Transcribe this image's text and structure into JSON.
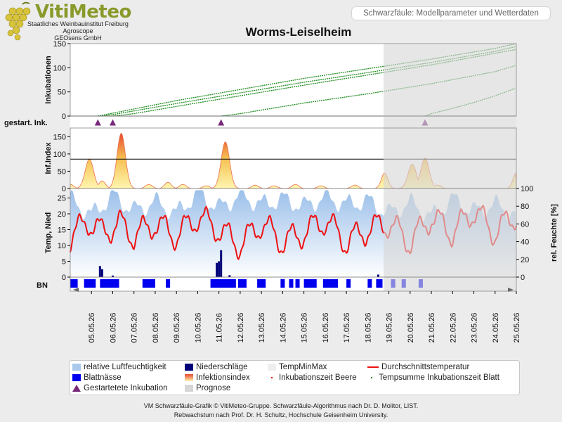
{
  "header": {
    "logo_name": "VitiMeteo",
    "logo_lines": [
      "Staatliches Weinbauinstitut Freiburg",
      "Agroscope",
      "GEOsens GmbH"
    ],
    "subtitle": "Schwarzfäule: Modellparameter und Wetterdaten",
    "title": "Worms-Leiselheim"
  },
  "colors": {
    "humidity": "#a8c8ec",
    "rain": "#00007a",
    "leafwet": "#0000ee",
    "temp": "#ee1111",
    "incubation": "#1e8c1e",
    "forecast": "#d6d6d6",
    "infection": "#f6d860",
    "marker": "#7a2a7a"
  },
  "chart_data": [
    {
      "type": "line",
      "panel": "Inkubationen",
      "ylabel": "Inkubationen",
      "ylim": [
        0,
        150
      ],
      "yticks": [
        0,
        50,
        100,
        150
      ],
      "x_axis": "date",
      "series": [
        {
          "x": [
            5.3,
            6.0,
            9.0,
            12.0,
            15.0,
            18.0,
            21.0,
            24.0,
            25.0
          ],
          "values": [
            0,
            6,
            32,
            55,
            78,
            98,
            118,
            140,
            150
          ]
        },
        {
          "x": [
            5.3,
            6.0,
            9.0,
            12.0,
            15.0,
            18.0,
            21.0,
            24.0,
            25.0
          ],
          "values": [
            0,
            3,
            26,
            48,
            70,
            90,
            111,
            134,
            144
          ]
        },
        {
          "x": [
            6.0,
            7.0,
            9.0,
            12.0,
            15.0,
            18.0,
            21.0,
            24.0,
            25.0
          ],
          "values": [
            0,
            5,
            20,
            42,
            64,
            85,
            106,
            130,
            138
          ]
        },
        {
          "x": [
            11.1,
            12.0,
            15.0,
            18.0,
            21.0,
            24.0,
            25.0
          ],
          "values": [
            0,
            5,
            27,
            46,
            67,
            92,
            105
          ]
        },
        {
          "x": [
            20.7,
            21.0,
            22.0,
            23.0,
            24.0,
            25.0
          ],
          "values": [
            0,
            5,
            16,
            28,
            42,
            58
          ]
        }
      ]
    },
    {
      "type": "scatter",
      "panel": "gestart. Ink.",
      "label": "gestart. Ink.",
      "x": [
        5.3,
        6.0,
        11.1,
        20.7
      ]
    },
    {
      "type": "area",
      "panel": "Inf.Index",
      "ylabel": "Inf.Index",
      "ylim": [
        0,
        175
      ],
      "yticks": [
        0,
        50,
        100,
        150
      ],
      "threshold": 85,
      "peaks": [
        {
          "x": 4.0,
          "y": 12
        },
        {
          "x": 4.9,
          "y": 85
        },
        {
          "x": 5.5,
          "y": 22
        },
        {
          "x": 6.4,
          "y": 160
        },
        {
          "x": 7.7,
          "y": 12
        },
        {
          "x": 8.6,
          "y": 18
        },
        {
          "x": 9.3,
          "y": 12
        },
        {
          "x": 10.4,
          "y": 8
        },
        {
          "x": 11.3,
          "y": 135
        },
        {
          "x": 12.7,
          "y": 10
        },
        {
          "x": 13.6,
          "y": 8
        },
        {
          "x": 14.6,
          "y": 12
        },
        {
          "x": 15.8,
          "y": 8
        },
        {
          "x": 17.4,
          "y": 10
        },
        {
          "x": 18.8,
          "y": 45
        },
        {
          "x": 20.1,
          "y": 70
        },
        {
          "x": 20.7,
          "y": 88
        },
        {
          "x": 21.3,
          "y": 10
        },
        {
          "x": 25.0,
          "y": 45
        }
      ]
    },
    {
      "type": "line",
      "panel": "Temperatur / Feuchte",
      "ylabel": "Temp, Nied",
      "ylabel_right": "rel. Feuchte [%]",
      "ylim": [
        0,
        28
      ],
      "yticks": [
        0,
        5,
        10,
        15,
        20,
        25
      ],
      "ylim_right": [
        0,
        100
      ],
      "yticks_right": [
        0,
        20,
        40,
        60,
        80,
        100
      ],
      "temp_mean": {
        "name": "Durchschnittstemperatur",
        "x": [
          4.0,
          4.8,
          5.5,
          6.3,
          7.0,
          8.0,
          9.0,
          10.0,
          11.0,
          12.0,
          13.0,
          14.0,
          15.0,
          16.0,
          17.0,
          18.0,
          19.0,
          20.0,
          21.0,
          22.0,
          23.0,
          24.0,
          25.0
        ],
        "values": [
          12,
          18,
          14,
          17,
          13,
          17,
          13,
          19,
          15,
          10,
          17,
          11,
          14,
          18,
          11,
          15,
          17,
          11,
          19,
          14,
          21,
          14,
          20
        ]
      },
      "humidity": {
        "name": "relative Luftfeuchtigkeit",
        "x": [
          4.0,
          5.0,
          6.0,
          7.0,
          8.0,
          9.0,
          10.0,
          11.0,
          12.0,
          13.0,
          14.0,
          15.0,
          16.0,
          17.0,
          18.0,
          19.0,
          20.0,
          21.0,
          22.0,
          23.0,
          24.0,
          25.0
        ],
        "values": [
          88,
          70,
          92,
          75,
          85,
          72,
          95,
          78,
          92,
          82,
          88,
          80,
          90,
          82,
          86,
          72,
          84,
          68,
          88,
          74,
          82,
          70
        ]
      },
      "rain": {
        "name": "Niederschläge",
        "x": [
          5.4,
          5.5,
          6.0,
          10.9,
          11.0,
          11.1,
          11.5,
          18.5
        ],
        "values": [
          3.5,
          2.5,
          0.5,
          4.5,
          5.0,
          8.5,
          0.6,
          0.8
        ]
      }
    },
    {
      "type": "bar",
      "panel": "BN",
      "label": "BN",
      "intervals": [
        [
          4.0,
          4.35
        ],
        [
          4.65,
          5.2
        ],
        [
          5.4,
          6.3
        ],
        [
          7.4,
          8.0
        ],
        [
          8.5,
          8.7
        ],
        [
          10.6,
          11.8
        ],
        [
          11.9,
          12.3
        ],
        [
          12.8,
          13.2
        ],
        [
          13.9,
          14.1
        ],
        [
          14.3,
          14.5
        ],
        [
          14.6,
          14.8
        ],
        [
          15.0,
          15.6
        ],
        [
          15.9,
          16.6
        ],
        [
          17.0,
          17.2
        ],
        [
          18.0,
          18.2
        ],
        [
          18.4,
          18.7
        ],
        [
          19.1,
          19.3
        ],
        [
          19.6,
          19.8
        ],
        [
          20.4,
          20.6
        ]
      ]
    }
  ],
  "x_axis": {
    "labels": [
      "05.05.26",
      "06.05.26",
      "07.05.26",
      "08.05.26",
      "09.05.26",
      "10.05.26",
      "11.05.26",
      "12.05.26",
      "13.05.26",
      "14.05.26",
      "15.05.26",
      "16.05.26",
      "17.05.26",
      "18.05.26",
      "19.05.26",
      "20.05.26",
      "21.05.26",
      "22.05.26",
      "23.05.26",
      "24.05.26",
      "25.05.26"
    ],
    "start_day": 4,
    "end_day": 25,
    "forecast_start_day": 18.75
  },
  "legend": [
    {
      "label": "relative Luftfeuchtigkeit",
      "icon": "humidity-swatch"
    },
    {
      "label": "Niederschläge",
      "icon": "rain-swatch"
    },
    {
      "label": "TempMinMax",
      "icon": "tempminmax-swatch"
    },
    {
      "label": "Durchschnittstemperatur",
      "icon": "temp-line"
    },
    {
      "label": "Blattnässe",
      "icon": "leafwet-swatch"
    },
    {
      "label": "Infektionsindex",
      "icon": "infection-swatch"
    },
    {
      "label": "Inkubationszeit Beere",
      "icon": "dot-red"
    },
    {
      "label": "Tempsumme Inkubationszeit Blatt",
      "icon": "dot-green"
    },
    {
      "label": "Gestartetete Inkubation",
      "icon": "triangle"
    },
    {
      "label": "Prognose",
      "icon": "forecast-swatch"
    }
  ],
  "footer": [
    "VM Schwarzfäule-Grafik © VitiMeteo-Gruppe. Schwarzfäule-Algorithmus nach Dr. D. Molitor, LIST.",
    "Rebwachstum nach Prof. Dr. H. Schultz, Hochschule Geisenheim University."
  ]
}
